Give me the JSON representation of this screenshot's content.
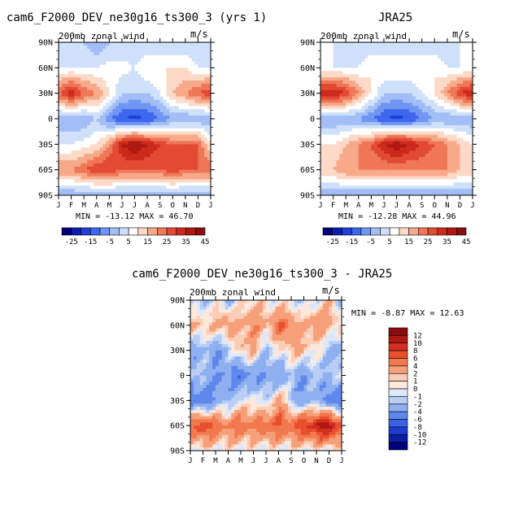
{
  "panels": [
    {
      "id": "model",
      "title": "cam6_F2000_DEV_ne30g16_ts300_3 (yrs 1)",
      "left_label": "200mb zonal wind",
      "right_label": "m/s",
      "stats": "MIN = -13.12 MAX =  46.70"
    },
    {
      "id": "obs",
      "title": "JRA25",
      "left_label": "200mb zonal wind",
      "right_label": "m/s",
      "stats": "MIN = -12.28 MAX =  44.96"
    },
    {
      "id": "diff",
      "title": "cam6_F2000_DEV_ne30g16_ts300_3 - JRA25",
      "left_label": "200mb zonal wind",
      "right_label": "m/s",
      "stats": "MIN =  -8.87 MAX =  12.63"
    }
  ],
  "axes": {
    "y_ticks": [
      "90N",
      "60N",
      "30N",
      "0",
      "30S",
      "60S",
      "90S"
    ],
    "x_ticks": [
      "J",
      "F",
      "M",
      "A",
      "M",
      "J",
      "J",
      "A",
      "S",
      "O",
      "N",
      "D",
      "J"
    ]
  },
  "colorbar_fields": {
    "labels": [
      "-25",
      "-15",
      "-5",
      "5",
      "15",
      "25",
      "35",
      "45"
    ],
    "colors": [
      "#00007a",
      "#0a1fb0",
      "#1f3fd8",
      "#3d67ee",
      "#6f96f2",
      "#a3bef6",
      "#cfe0fa",
      "#ffffff",
      "#fdd9c8",
      "#f7a98a",
      "#ef7758",
      "#e24a34",
      "#cc2a1c",
      "#b01812",
      "#8a0c0c"
    ]
  },
  "colorbar_diff": {
    "labels": [
      "12",
      "10",
      "8",
      "6",
      "4",
      "2",
      "1",
      "0",
      "-1",
      "-2",
      "-4",
      "-6",
      "-8",
      "-10",
      "-12"
    ],
    "colors": [
      "#8a0c0c",
      "#b01812",
      "#d22f1f",
      "#e8502d",
      "#f2784e",
      "#f6a07a",
      "#fbcdb6",
      "#fde8dc",
      "#dde8fa",
      "#b9cdf5",
      "#8fb0f0",
      "#5f88ec",
      "#3a62e4",
      "#1d3ccf",
      "#0a1fa6",
      "#00007a"
    ]
  },
  "chart_data": [
    {
      "type": "heatmap",
      "title": "cam6_F2000_DEV_ne30g16_ts300_3 (yrs 1)",
      "field": "200mb zonal wind",
      "units": "m/s",
      "x": [
        "J",
        "F",
        "M",
        "A",
        "M",
        "J",
        "J",
        "A",
        "S",
        "O",
        "N",
        "D",
        "J"
      ],
      "y": [
        "90N",
        "60N",
        "30N",
        "0",
        "30S",
        "60S",
        "90S"
      ],
      "min": -13.12,
      "max": 46.7,
      "values_by_month_lat": [
        [
          5,
          10,
          30,
          0,
          10,
          25,
          0
        ],
        [
          5,
          10,
          40,
          0,
          10,
          25,
          0
        ],
        [
          5,
          10,
          30,
          0,
          12,
          30,
          0
        ],
        [
          0,
          10,
          25,
          5,
          15,
          35,
          0
        ],
        [
          5,
          12,
          15,
          -5,
          25,
          35,
          0
        ],
        [
          5,
          12,
          5,
          -10,
          40,
          30,
          0
        ],
        [
          5,
          10,
          5,
          -12,
          46,
          30,
          0
        ],
        [
          5,
          15,
          5,
          -10,
          40,
          30,
          0
        ],
        [
          5,
          15,
          10,
          -5,
          35,
          30,
          0
        ],
        [
          5,
          15,
          20,
          0,
          30,
          35,
          0
        ],
        [
          5,
          15,
          25,
          0,
          30,
          30,
          0
        ],
        [
          5,
          10,
          30,
          0,
          30,
          30,
          0
        ],
        [
          5,
          10,
          35,
          0,
          15,
          30,
          0
        ]
      ]
    },
    {
      "type": "heatmap",
      "title": "JRA25",
      "field": "200mb zonal wind",
      "units": "m/s",
      "x": [
        "J",
        "F",
        "M",
        "A",
        "M",
        "J",
        "J",
        "A",
        "S",
        "O",
        "N",
        "D",
        "J"
      ],
      "y": [
        "90N",
        "60N",
        "30N",
        "0",
        "30S",
        "60S",
        "90S"
      ],
      "min": -12.28,
      "max": 44.96,
      "values_by_month_lat": [
        [
          10,
          10,
          40,
          0,
          15,
          20,
          0
        ],
        [
          10,
          10,
          40,
          0,
          15,
          20,
          0
        ],
        [
          5,
          10,
          35,
          0,
          20,
          25,
          0
        ],
        [
          5,
          10,
          25,
          0,
          25,
          25,
          0
        ],
        [
          5,
          15,
          15,
          -5,
          30,
          25,
          0
        ],
        [
          5,
          15,
          5,
          -10,
          40,
          25,
          0
        ],
        [
          5,
          15,
          5,
          -12,
          45,
          25,
          0
        ],
        [
          5,
          15,
          5,
          -10,
          40,
          25,
          0
        ],
        [
          5,
          15,
          10,
          -5,
          35,
          25,
          0
        ],
        [
          5,
          15,
          15,
          0,
          30,
          25,
          0
        ],
        [
          5,
          10,
          25,
          0,
          25,
          25,
          0
        ],
        [
          10,
          10,
          35,
          0,
          20,
          20,
          0
        ],
        [
          10,
          10,
          40,
          0,
          15,
          20,
          0
        ]
      ]
    },
    {
      "type": "heatmap",
      "title": "cam6_F2000_DEV_ne30g16_ts300_3 - JRA25",
      "field": "200mb zonal wind",
      "units": "m/s",
      "x": [
        "J",
        "F",
        "M",
        "A",
        "M",
        "J",
        "J",
        "A",
        "S",
        "O",
        "N",
        "D",
        "J"
      ],
      "y": [
        "90N",
        "60N",
        "30N",
        "0",
        "30S",
        "60S",
        "90S"
      ],
      "min": -8.87,
      "max": 12.63,
      "values_by_month_lat": [
        [
          -2,
          2,
          -4,
          -1,
          -6,
          6,
          0
        ],
        [
          -2,
          2,
          -2,
          -2,
          -6,
          8,
          0
        ],
        [
          0,
          2,
          -4,
          -4,
          -4,
          6,
          0
        ],
        [
          -2,
          4,
          -2,
          -4,
          -2,
          4,
          0
        ],
        [
          0,
          2,
          2,
          -6,
          -1,
          6,
          0
        ],
        [
          2,
          4,
          2,
          -4,
          1,
          4,
          0
        ],
        [
          0,
          2,
          -2,
          -4,
          -2,
          6,
          0
        ],
        [
          0,
          6,
          0,
          -4,
          4,
          6,
          0
        ],
        [
          0,
          4,
          2,
          -2,
          -2,
          6,
          0
        ],
        [
          -2,
          2,
          2,
          -4,
          -4,
          8,
          0
        ],
        [
          0,
          4,
          0,
          -2,
          -2,
          10,
          0
        ],
        [
          2,
          2,
          -2,
          -2,
          -6,
          12,
          0
        ],
        [
          -2,
          2,
          -4,
          -1,
          -6,
          6,
          0
        ]
      ]
    }
  ]
}
